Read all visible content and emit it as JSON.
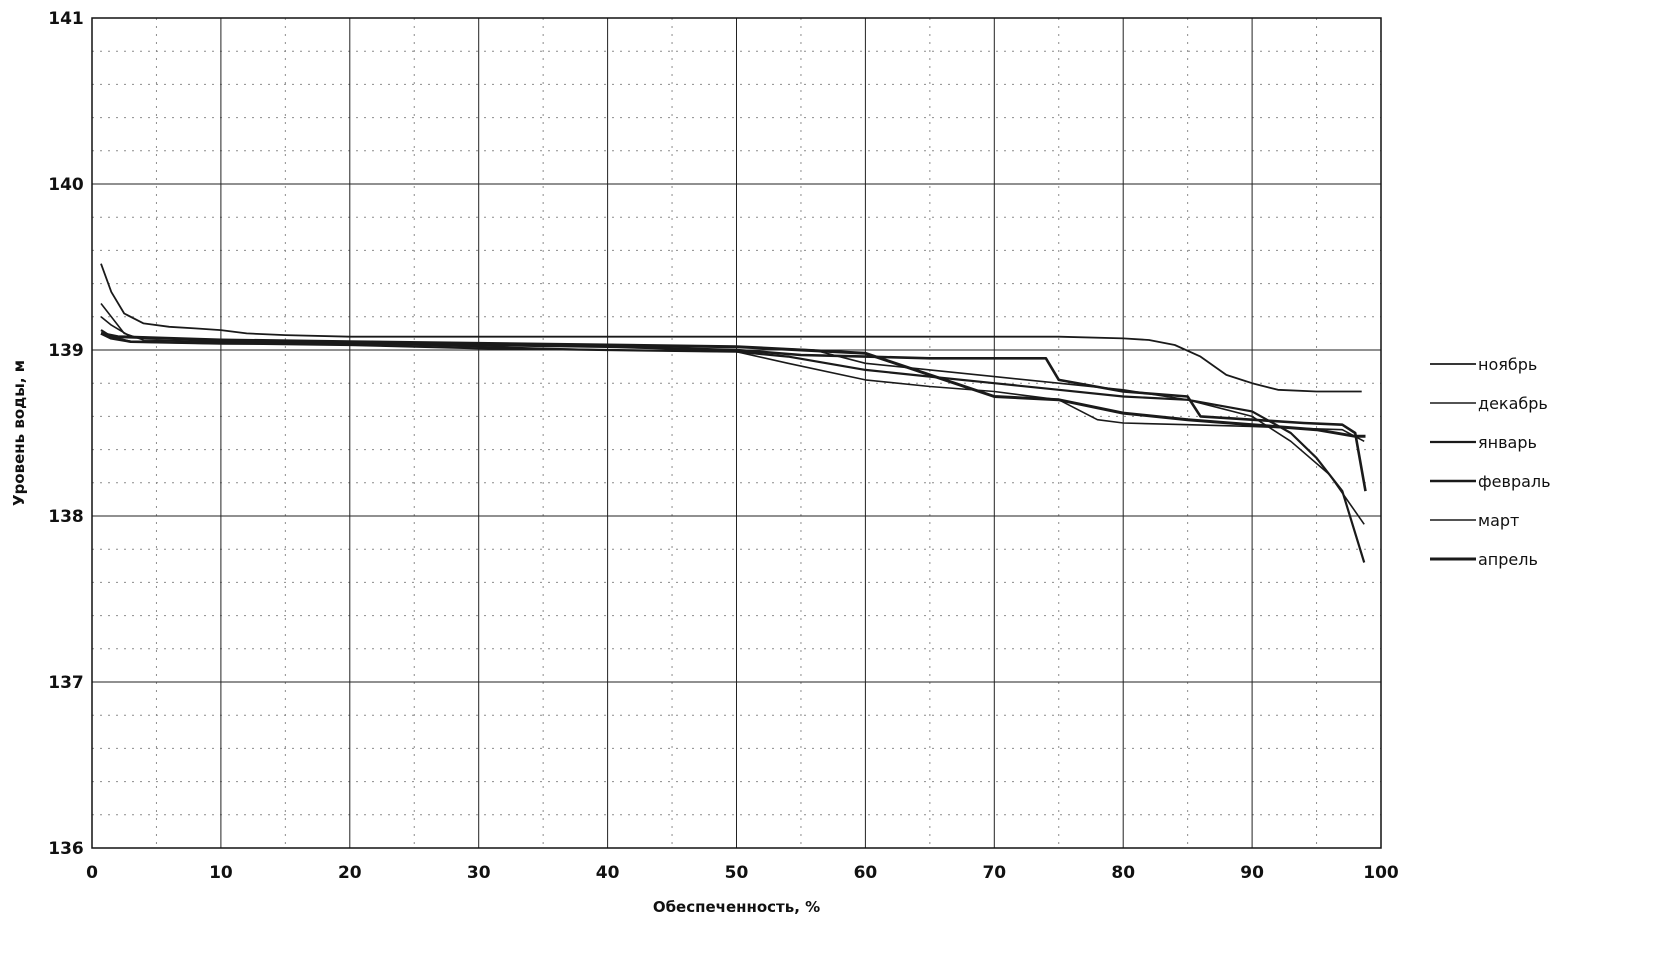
{
  "chart_data": {
    "type": "line",
    "title": "",
    "xlabel": "Обеспеченность, %",
    "ylabel": "Уровень воды, м",
    "xlim": [
      0,
      100
    ],
    "ylim": [
      136,
      141
    ],
    "x_ticks": [
      0,
      10,
      20,
      30,
      40,
      50,
      60,
      70,
      80,
      90,
      100
    ],
    "y_ticks": [
      136,
      137,
      138,
      139,
      140,
      141
    ],
    "grid": true,
    "legend": "right",
    "series": [
      {
        "name": "ноябрь",
        "x": [
          0.7,
          1.5,
          2.5,
          4,
          6,
          8,
          10,
          12,
          15,
          20,
          30,
          40,
          50,
          58,
          70,
          75,
          80,
          82,
          84,
          86,
          88,
          90,
          92,
          95,
          98.5
        ],
        "y": [
          139.52,
          139.35,
          139.22,
          139.16,
          139.14,
          139.13,
          139.12,
          139.1,
          139.09,
          139.08,
          139.08,
          139.08,
          139.08,
          139.08,
          139.08,
          139.08,
          139.07,
          139.06,
          139.03,
          138.96,
          138.85,
          138.8,
          138.76,
          138.75,
          138.75
        ]
      },
      {
        "name": "декабрь",
        "x": [
          0.7,
          1.5,
          3,
          10,
          20,
          30,
          40,
          50,
          56,
          60,
          65,
          70,
          75,
          80,
          85,
          90,
          93,
          96,
          98.7
        ],
        "y": [
          139.2,
          139.15,
          139.08,
          139.06,
          139.05,
          139.04,
          139.03,
          139.02,
          139.0,
          138.92,
          138.88,
          138.84,
          138.8,
          138.76,
          138.7,
          138.6,
          138.45,
          138.25,
          137.95
        ]
      },
      {
        "name": "январь",
        "x": [
          0.7,
          1.5,
          3,
          10,
          20,
          30,
          40,
          50,
          54,
          60,
          65,
          70,
          75,
          80,
          85,
          90,
          93,
          95,
          97,
          98.7
        ],
        "y": [
          139.12,
          139.08,
          139.05,
          139.04,
          139.03,
          139.01,
          139.0,
          138.99,
          138.96,
          138.88,
          138.84,
          138.8,
          138.76,
          138.72,
          138.7,
          138.63,
          138.5,
          138.35,
          138.15,
          137.72
        ]
      },
      {
        "name": "февраль",
        "x": [
          0.7,
          1.5,
          3,
          10,
          20,
          30,
          40,
          50,
          55,
          60,
          65,
          70,
          74,
          75,
          80,
          85,
          86,
          90,
          94,
          97,
          98,
          98.8
        ],
        "y": [
          139.1,
          139.07,
          139.05,
          139.04,
          139.04,
          139.03,
          139.02,
          139.0,
          138.97,
          138.96,
          138.95,
          138.95,
          138.95,
          138.82,
          138.75,
          138.72,
          138.6,
          138.58,
          138.56,
          138.55,
          138.5,
          138.15
        ]
      },
      {
        "name": "март",
        "x": [
          0.7,
          1.5,
          2.5,
          4,
          10,
          20,
          30,
          40,
          50,
          54,
          60,
          65,
          70,
          75,
          78,
          80,
          85,
          90,
          93,
          97,
          98.7
        ],
        "y": [
          139.28,
          139.2,
          139.1,
          139.06,
          139.05,
          139.04,
          139.02,
          139.0,
          138.99,
          138.92,
          138.82,
          138.78,
          138.75,
          138.7,
          138.58,
          138.56,
          138.55,
          138.54,
          138.53,
          138.52,
          138.45
        ]
      },
      {
        "name": "апрель",
        "x": [
          0.7,
          2,
          10,
          20,
          30,
          40,
          50,
          60,
          70,
          75,
          80,
          85,
          90,
          95,
          98,
          98.8
        ],
        "y": [
          139.1,
          139.08,
          139.06,
          139.05,
          139.04,
          139.03,
          139.02,
          138.98,
          138.72,
          138.7,
          138.62,
          138.58,
          138.55,
          138.52,
          138.48,
          138.48
        ]
      }
    ]
  },
  "style": {
    "line_color": "#1a1a1a",
    "major_grid_color": "#222222",
    "minor_grid_color": "#8c8c8c"
  }
}
